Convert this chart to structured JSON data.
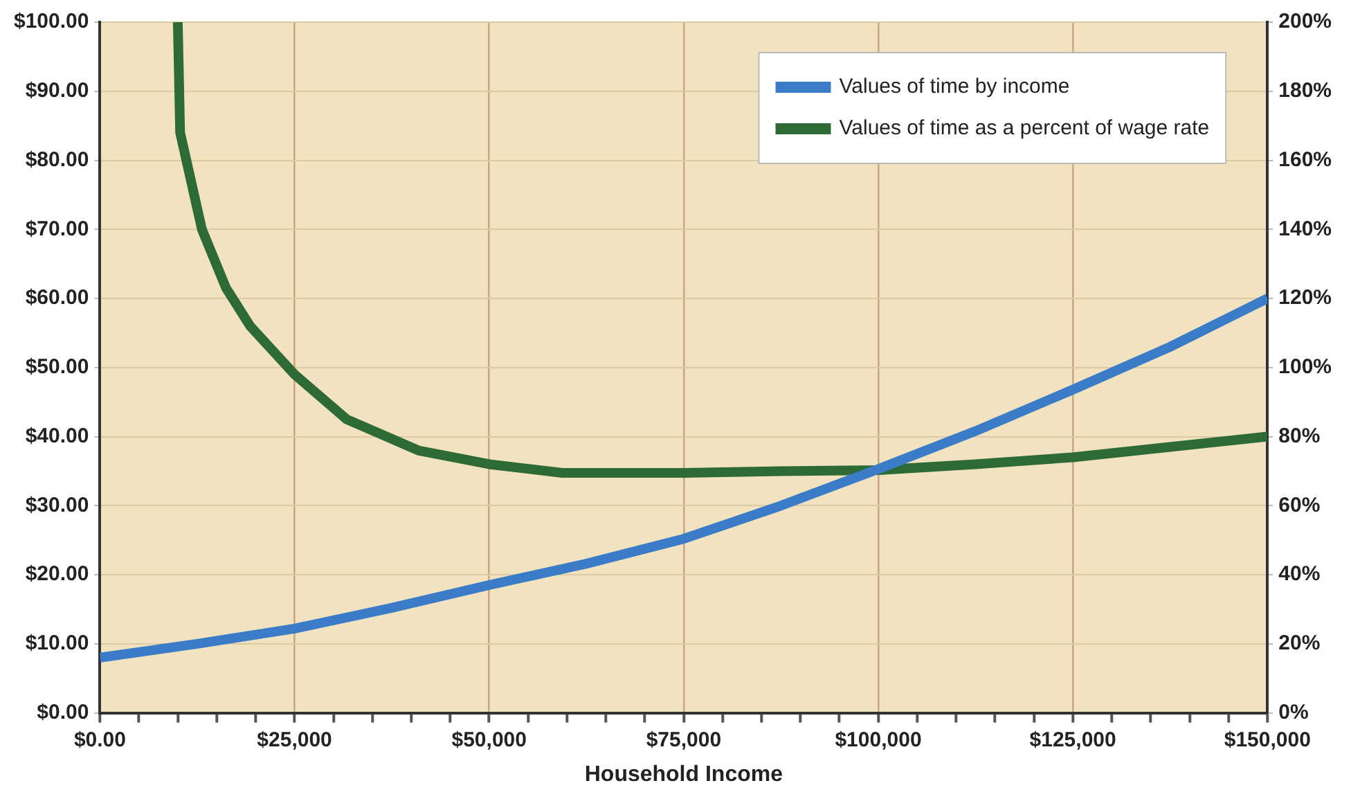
{
  "chart_data": {
    "type": "line",
    "xlabel": "Household Income",
    "xlim": [
      0,
      150000
    ],
    "xticks": [
      {
        "value": 0,
        "label": "$0.00"
      },
      {
        "value": 5000,
        "label": null
      },
      {
        "value": 10000,
        "label": null
      },
      {
        "value": 15000,
        "label": null
      },
      {
        "value": 20000,
        "label": null
      },
      {
        "value": 25000,
        "label": "$25,000"
      },
      {
        "value": 30000,
        "label": null
      },
      {
        "value": 35000,
        "label": null
      },
      {
        "value": 40000,
        "label": null
      },
      {
        "value": 45000,
        "label": null
      },
      {
        "value": 50000,
        "label": "$50,000"
      },
      {
        "value": 55000,
        "label": null
      },
      {
        "value": 60000,
        "label": null
      },
      {
        "value": 65000,
        "label": null
      },
      {
        "value": 70000,
        "label": null
      },
      {
        "value": 75000,
        "label": "$75,000"
      },
      {
        "value": 80000,
        "label": null
      },
      {
        "value": 85000,
        "label": null
      },
      {
        "value": 90000,
        "label": null
      },
      {
        "value": 95000,
        "label": null
      },
      {
        "value": 100000,
        "label": "$100,000"
      },
      {
        "value": 105000,
        "label": null
      },
      {
        "value": 110000,
        "label": null
      },
      {
        "value": 115000,
        "label": null
      },
      {
        "value": 120000,
        "label": null
      },
      {
        "value": 125000,
        "label": "$125,000"
      },
      {
        "value": 130000,
        "label": null
      },
      {
        "value": 135000,
        "label": null
      },
      {
        "value": 140000,
        "label": null
      },
      {
        "value": 145000,
        "label": null
      },
      {
        "value": 150000,
        "label": "$150,000"
      }
    ],
    "ylim": [
      0,
      100
    ],
    "yticks": [
      {
        "value": 0,
        "label": "$0.00"
      },
      {
        "value": 10,
        "label": "$10.00"
      },
      {
        "value": 20,
        "label": "$20.00"
      },
      {
        "value": 30,
        "label": "$30.00"
      },
      {
        "value": 40,
        "label": "$40.00"
      },
      {
        "value": 50,
        "label": "$50.00"
      },
      {
        "value": 60,
        "label": "$60.00"
      },
      {
        "value": 70,
        "label": "$70.00"
      },
      {
        "value": 80,
        "label": "$80.00"
      },
      {
        "value": 90,
        "label": "$90.00"
      },
      {
        "value": 100,
        "label": "$100.00"
      }
    ],
    "y2lim": [
      0,
      200
    ],
    "y2ticks": [
      {
        "value": 0,
        "label": "0%"
      },
      {
        "value": 20,
        "label": "20%"
      },
      {
        "value": 40,
        "label": "40%"
      },
      {
        "value": 60,
        "label": "60%"
      },
      {
        "value": 80,
        "label": "80%"
      },
      {
        "value": 100,
        "label": "100%"
      },
      {
        "value": 120,
        "label": "120%"
      },
      {
        "value": 140,
        "label": "140%"
      },
      {
        "value": 160,
        "label": "160%"
      },
      {
        "value": 180,
        "label": "180%"
      },
      {
        "value": 200,
        "label": "200%"
      }
    ],
    "grid": true,
    "legend": "top right",
    "marker": "none",
    "line_style": "solid",
    "series": [
      {
        "name": "Values of time by income",
        "color": "#3a7cc8",
        "x": [
          0,
          12500,
          25000,
          37500,
          50000,
          62500,
          75000,
          87500,
          100000,
          112500,
          125000,
          137500,
          150000
        ],
        "values": [
          8,
          10,
          12.2,
          15.2,
          18.5,
          21.6,
          25.2,
          30,
          35.3,
          40.8,
          46.8,
          53,
          60
        ]
      },
      {
        "name": "Values of time as a percent of wage rate",
        "color": "#2e6a35",
        "axis": "y2",
        "x": [
          10000,
          10300,
          13100,
          16200,
          19300,
          25000,
          31700,
          40900,
          50000,
          59400,
          75000,
          87500,
          100000,
          112500,
          125000,
          137500,
          150000
        ],
        "values": [
          200,
          168,
          140,
          123,
          112,
          98,
          85,
          76,
          72,
          69.5,
          69.5,
          70,
          70.3,
          72,
          74,
          77,
          80
        ]
      }
    ]
  }
}
